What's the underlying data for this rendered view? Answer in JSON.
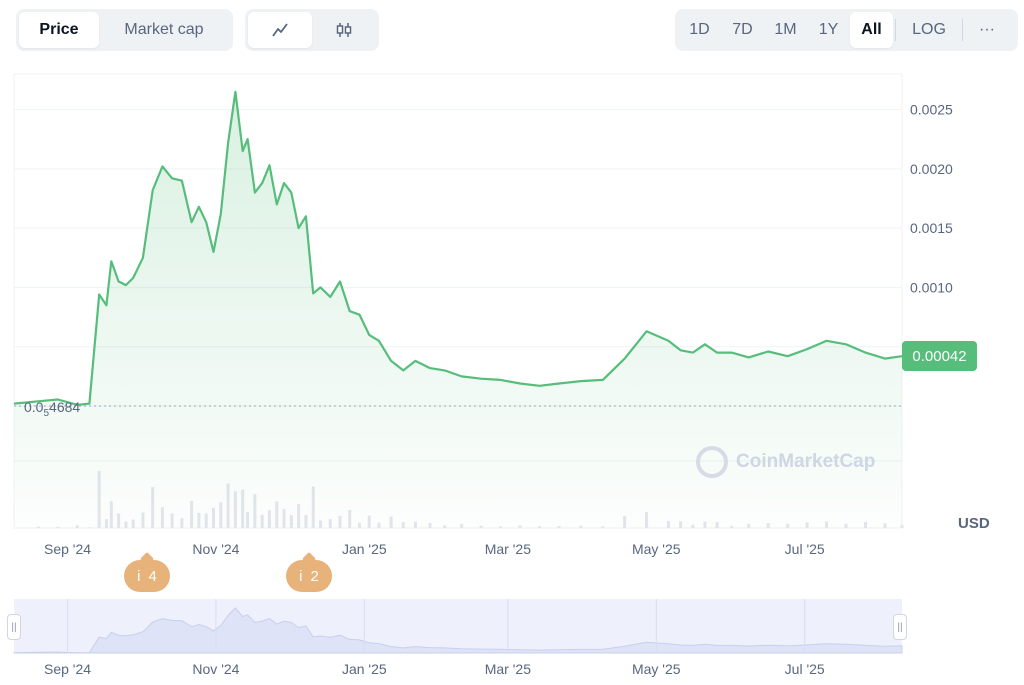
{
  "metric_tabs": [
    {
      "label": "Price",
      "active": true
    },
    {
      "label": "Market cap",
      "active": false
    }
  ],
  "type_tabs": [
    {
      "icon": "line-chart-icon",
      "active": true
    },
    {
      "icon": "candlestick-icon",
      "active": false
    }
  ],
  "range_tabs": [
    {
      "label": "1D",
      "active": false
    },
    {
      "label": "7D",
      "active": false
    },
    {
      "label": "1M",
      "active": false
    },
    {
      "label": "1Y",
      "active": false
    },
    {
      "label": "All",
      "active": true
    }
  ],
  "log_label": "LOG",
  "more_label": "···",
  "colors": {
    "line": "#56bd7b",
    "badge": "#56bd7b",
    "event": "#e8b27b",
    "volume": "#e3e6ec",
    "nav_fill": "#e8ebf8"
  },
  "chart_data": {
    "type": "line",
    "x_ticks": [
      "Sep '24",
      "Nov '24",
      "Jan '25",
      "Mar '25",
      "May '25",
      "Jul '25"
    ],
    "y_ticks": [
      "0.0025",
      "0.0020",
      "0.0015",
      "0.0010"
    ],
    "y_tick_values": [
      0.0025,
      0.002,
      0.0015,
      0.001
    ],
    "ylim": [
      0,
      0.0028
    ],
    "x_range": [
      "2024-08-10",
      "2025-08-10"
    ],
    "unit_label": "USD",
    "current_price": "0.00042",
    "current_value": 0.00042,
    "min_label_lead": "0.0",
    "min_label_sub": "5",
    "min_label_tail": "4684",
    "series": [
      {
        "x": [
          "2024-08-10",
          "2024-08-20",
          "2024-08-28",
          "2024-09-05",
          "2024-09-10",
          "2024-09-14",
          "2024-09-17",
          "2024-09-19",
          "2024-09-22",
          "2024-09-25",
          "2024-09-28",
          "2024-10-02",
          "2024-10-06",
          "2024-10-10",
          "2024-10-14",
          "2024-10-18",
          "2024-10-22",
          "2024-10-25",
          "2024-10-28",
          "2024-10-31",
          "2024-11-03",
          "2024-11-06",
          "2024-11-09",
          "2024-11-12",
          "2024-11-14",
          "2024-11-17",
          "2024-11-20",
          "2024-11-23",
          "2024-11-26",
          "2024-11-29",
          "2024-12-02",
          "2024-12-05",
          "2024-12-08",
          "2024-12-11",
          "2024-12-14",
          "2024-12-18",
          "2024-12-22",
          "2024-12-26",
          "2024-12-30",
          "2025-01-03",
          "2025-01-07",
          "2025-01-12",
          "2025-01-17",
          "2025-01-22",
          "2025-01-28",
          "2025-02-03",
          "2025-02-10",
          "2025-02-18",
          "2025-02-26",
          "2025-03-06",
          "2025-03-14",
          "2025-03-22",
          "2025-03-31",
          "2025-04-09",
          "2025-04-18",
          "2025-04-27",
          "2025-05-06",
          "2025-05-11",
          "2025-05-16",
          "2025-05-21",
          "2025-05-26",
          "2025-06-01",
          "2025-06-08",
          "2025-06-16",
          "2025-06-24",
          "2025-07-02",
          "2025-07-10",
          "2025-07-18",
          "2025-07-26",
          "2025-08-03",
          "2025-08-10"
        ],
        "y": [
          2e-05,
          4e-05,
          5.5e-05,
          1e-05,
          2e-05,
          0.00094,
          0.00085,
          0.00122,
          0.00105,
          0.00102,
          0.00108,
          0.00125,
          0.00182,
          0.00202,
          0.00192,
          0.0019,
          0.00155,
          0.00168,
          0.00155,
          0.0013,
          0.00162,
          0.00222,
          0.00265,
          0.00215,
          0.00225,
          0.0018,
          0.00188,
          0.00203,
          0.0017,
          0.00188,
          0.0018,
          0.0015,
          0.0016,
          0.00095,
          0.001,
          0.00092,
          0.00105,
          0.0008,
          0.00077,
          0.0006,
          0.00055,
          0.00038,
          0.0003,
          0.00038,
          0.00032,
          0.0003,
          0.00025,
          0.00023,
          0.00022,
          0.00019,
          0.00017,
          0.00019,
          0.00021,
          0.00022,
          0.0004,
          0.00063,
          0.00055,
          0.00047,
          0.00045,
          0.00052,
          0.00045,
          0.00045,
          0.00041,
          0.00046,
          0.00042,
          0.00048,
          0.00055,
          0.00052,
          0.00045,
          0.0004,
          0.00042
        ]
      }
    ]
  },
  "events": [
    {
      "icon": "info-icon",
      "count": "4"
    },
    {
      "icon": "info-icon",
      "count": "2"
    }
  ],
  "watermark": "CoinMarketCap"
}
